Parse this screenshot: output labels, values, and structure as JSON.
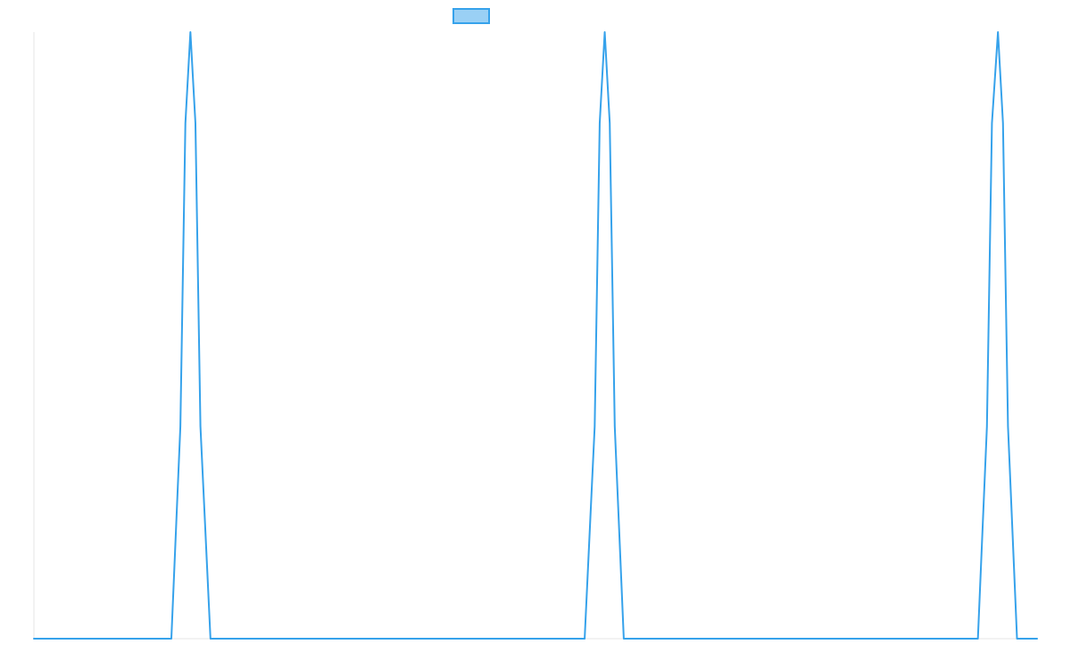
{
  "chart_data": {
    "type": "line",
    "title": "",
    "xlabel": "",
    "ylabel": "",
    "grid": false,
    "legend": {
      "position": "top-center",
      "entries": [
        {
          "name": "",
          "color": "#36a2eb",
          "fill": "#9ad0f5"
        }
      ]
    },
    "xlim": [
      0,
      100
    ],
    "ylim": [
      0,
      1
    ],
    "series": [
      {
        "name": "",
        "color": "#36a2eb",
        "points": [
          [
            0,
            0
          ],
          [
            13.7,
            0
          ],
          [
            14.6,
            0.35
          ],
          [
            15.1,
            0.85
          ],
          [
            15.6,
            1.0
          ],
          [
            16.1,
            0.85
          ],
          [
            16.6,
            0.35
          ],
          [
            17.6,
            0
          ],
          [
            54.9,
            0
          ],
          [
            55.9,
            0.35
          ],
          [
            56.4,
            0.85
          ],
          [
            56.9,
            1.0
          ],
          [
            57.4,
            0.85
          ],
          [
            57.9,
            0.35
          ],
          [
            58.8,
            0
          ],
          [
            94.1,
            0
          ],
          [
            95.0,
            0.35
          ],
          [
            95.5,
            0.85
          ],
          [
            96.1,
            1.0
          ],
          [
            96.6,
            0.85
          ],
          [
            97.1,
            0.35
          ],
          [
            98.0,
            0
          ],
          [
            100,
            0
          ]
        ]
      }
    ]
  }
}
